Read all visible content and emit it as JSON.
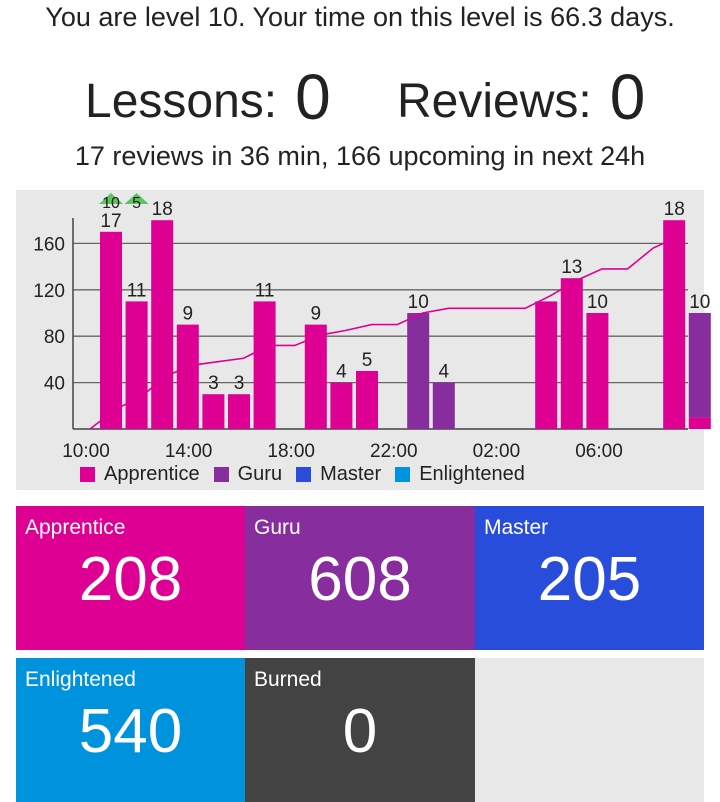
{
  "header": {
    "level_text": "You are level 10. Your time on this level is 66.3 days.",
    "lessons_label": "Lessons:",
    "lessons_count": "0",
    "reviews_label": "Reviews:",
    "reviews_count": "0",
    "forecast_text": "17 reviews in 36 min, 166 upcoming in next 24h"
  },
  "colors": {
    "apprentice": "#dd0093",
    "guru": "#882d9e",
    "master": "#294ddb",
    "enlightened": "#0093dd",
    "burned": "#434343",
    "cumulative_line": "#dd0093",
    "chart_bg": "#e8e8e8",
    "level_up_marker": "#5cc45c"
  },
  "chart_data": {
    "type": "bar",
    "stacked": true,
    "title": "",
    "xlabel": "",
    "ylabel": "",
    "ylim": [
      0,
      180
    ],
    "yticks": [
      40,
      80,
      120,
      160
    ],
    "grid": true,
    "xticks": [
      "10:00",
      "14:00",
      "18:00",
      "22:00",
      "02:00",
      "06:00"
    ],
    "legend_position": "bottom",
    "legend": [
      "Apprentice",
      "Guru",
      "Master",
      "Enlightened"
    ],
    "level_up_markers": [
      {
        "bar": 0,
        "label": "10"
      },
      {
        "bar": 1,
        "label": "5"
      }
    ],
    "bars": [
      {
        "label": "17",
        "apprentice": 17,
        "guru": 0
      },
      {
        "label": "11",
        "apprentice": 11,
        "guru": 0
      },
      {
        "label": "18",
        "apprentice": 18,
        "guru": 0
      },
      {
        "label": "9",
        "apprentice": 9,
        "guru": 0
      },
      {
        "label": "3",
        "apprentice": 3,
        "guru": 0
      },
      {
        "label": "3",
        "apprentice": 3,
        "guru": 0
      },
      {
        "label": "11",
        "apprentice": 11,
        "guru": 0
      },
      {
        "label": "",
        "apprentice": 0,
        "guru": 0
      },
      {
        "label": "9",
        "apprentice": 9,
        "guru": 0
      },
      {
        "label": "4",
        "apprentice": 4,
        "guru": 0
      },
      {
        "label": "5",
        "apprentice": 5,
        "guru": 0
      },
      {
        "label": "",
        "apprentice": 0,
        "guru": 0
      },
      {
        "label": "10",
        "apprentice": 0,
        "guru": 10
      },
      {
        "label": "4",
        "apprentice": 0,
        "guru": 4
      },
      {
        "label": "",
        "apprentice": 0,
        "guru": 0
      },
      {
        "label": "",
        "apprentice": 0,
        "guru": 0
      },
      {
        "label": "",
        "apprentice": 0,
        "guru": 0
      },
      {
        "label": "",
        "apprentice": 11,
        "guru": 0
      },
      {
        "label": "13",
        "apprentice": 13,
        "guru": 0
      },
      {
        "label": "10",
        "apprentice": 10,
        "guru": 0
      },
      {
        "label": "",
        "apprentice": 0,
        "guru": 0
      },
      {
        "label": "",
        "apprentice": 0,
        "guru": 0
      },
      {
        "label": "18",
        "apprentice": 18,
        "guru": 0
      },
      {
        "label": "10",
        "apprentice": 1,
        "guru": 9
      }
    ],
    "cumulative": [
      0,
      17,
      28,
      46,
      55,
      58,
      61,
      72,
      72,
      81,
      85,
      90,
      90,
      100,
      104,
      104,
      104,
      104,
      115,
      128,
      138,
      138,
      156,
      166
    ]
  },
  "stages": [
    {
      "name": "Apprentice",
      "count": "208"
    },
    {
      "name": "Guru",
      "count": "608"
    },
    {
      "name": "Master",
      "count": "205"
    },
    {
      "name": "Enlightened",
      "count": "540"
    },
    {
      "name": "Burned",
      "count": "0"
    }
  ]
}
